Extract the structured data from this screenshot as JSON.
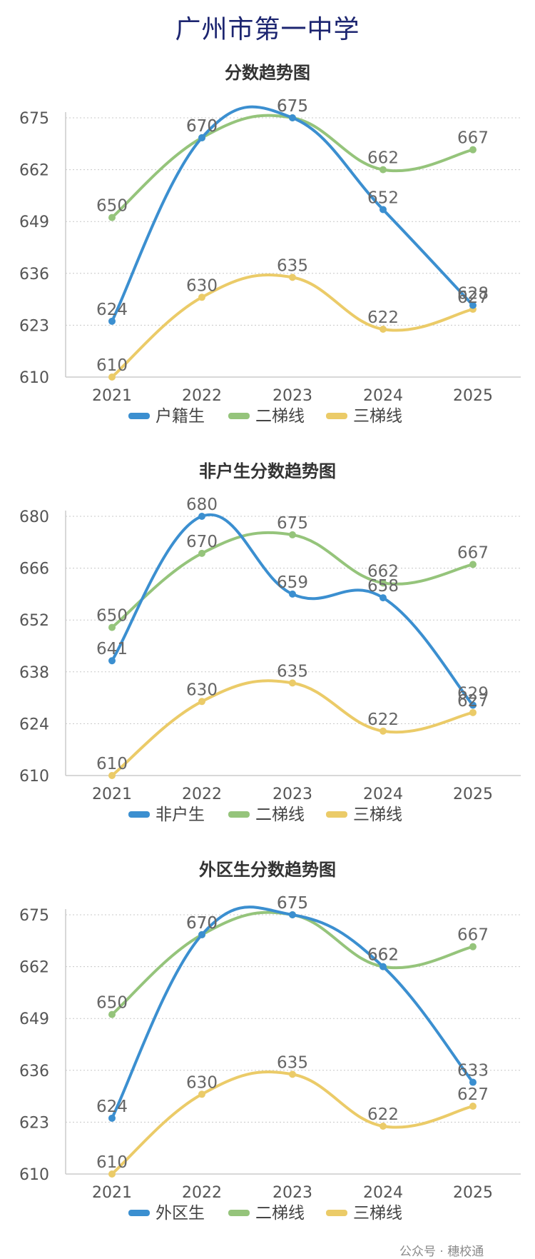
{
  "page_title": "广州市第一中学",
  "watermark": "公众号 · 穗校通",
  "chart_data": [
    {
      "type": "line",
      "title": "分数趋势图",
      "categories": [
        "2021",
        "2022",
        "2023",
        "2024",
        "2025"
      ],
      "ylim": [
        610,
        675
      ],
      "yticks": [
        610,
        623,
        636,
        649,
        662,
        675
      ],
      "grid": true,
      "legend": "bottom",
      "series": [
        {
          "name": "户籍生",
          "color": "#3b8fd0",
          "values": [
            624,
            670,
            675,
            652,
            628
          ]
        },
        {
          "name": "二梯线",
          "color": "#95c47b",
          "values": [
            650,
            670,
            675,
            662,
            667
          ]
        },
        {
          "name": "三梯线",
          "color": "#ebcb68",
          "values": [
            610,
            630,
            635,
            622,
            627
          ]
        }
      ]
    },
    {
      "type": "line",
      "title": "非户生分数趋势图",
      "categories": [
        "2021",
        "2022",
        "2023",
        "2024",
        "2025"
      ],
      "ylim": [
        610,
        680
      ],
      "yticks": [
        610,
        624,
        638,
        652,
        666,
        680
      ],
      "grid": true,
      "legend": "bottom",
      "series": [
        {
          "name": "非户生",
          "color": "#3b8fd0",
          "values": [
            641,
            680,
            659,
            658,
            629
          ]
        },
        {
          "name": "二梯线",
          "color": "#95c47b",
          "values": [
            650,
            670,
            675,
            662,
            667
          ]
        },
        {
          "name": "三梯线",
          "color": "#ebcb68",
          "values": [
            610,
            630,
            635,
            622,
            627
          ]
        }
      ]
    },
    {
      "type": "line",
      "title": "外区生分数趋势图",
      "categories": [
        "2021",
        "2022",
        "2023",
        "2024",
        "2025"
      ],
      "ylim": [
        610,
        675
      ],
      "yticks": [
        610,
        623,
        636,
        649,
        662,
        675
      ],
      "grid": true,
      "legend": "bottom",
      "series": [
        {
          "name": "外区生",
          "color": "#3b8fd0",
          "values": [
            624,
            670,
            675,
            662,
            633
          ]
        },
        {
          "name": "二梯线",
          "color": "#95c47b",
          "values": [
            650,
            670,
            675,
            662,
            667
          ]
        },
        {
          "name": "三梯线",
          "color": "#ebcb68",
          "values": [
            610,
            630,
            635,
            622,
            627
          ]
        }
      ]
    }
  ]
}
